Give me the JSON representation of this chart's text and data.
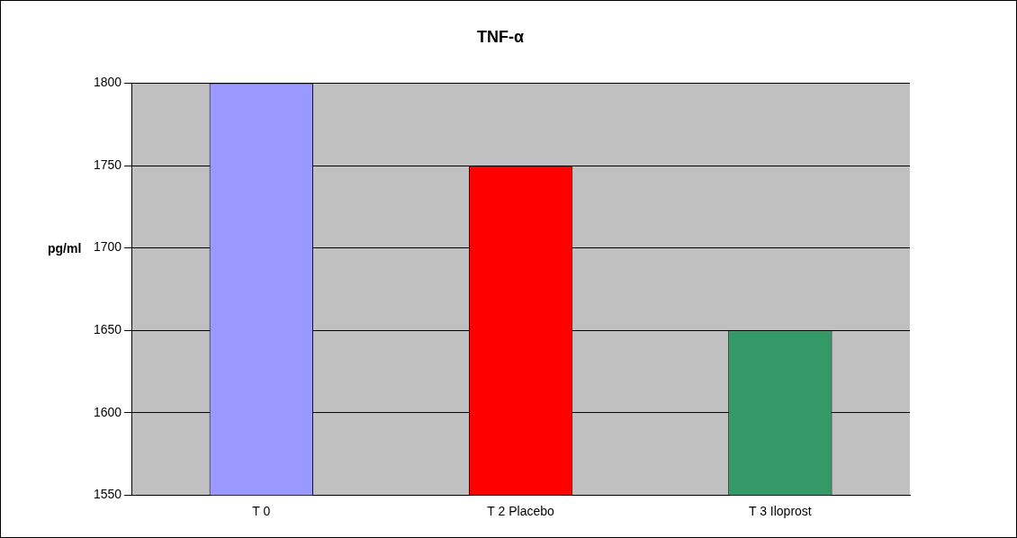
{
  "chart_data": {
    "type": "bar",
    "title": "TNF-α",
    "ylabel": "pg/ml",
    "categories": [
      "T 0",
      "T 2 Placebo",
      "T 3 Iloprost"
    ],
    "values": [
      1800,
      1750,
      1650
    ],
    "colors": [
      "#9999ff",
      "#ff0000",
      "#339966"
    ],
    "ylim": [
      1550,
      1800
    ],
    "yticks": [
      1550,
      1600,
      1650,
      1700,
      1750,
      1800
    ],
    "grid": "y",
    "legend": false
  }
}
